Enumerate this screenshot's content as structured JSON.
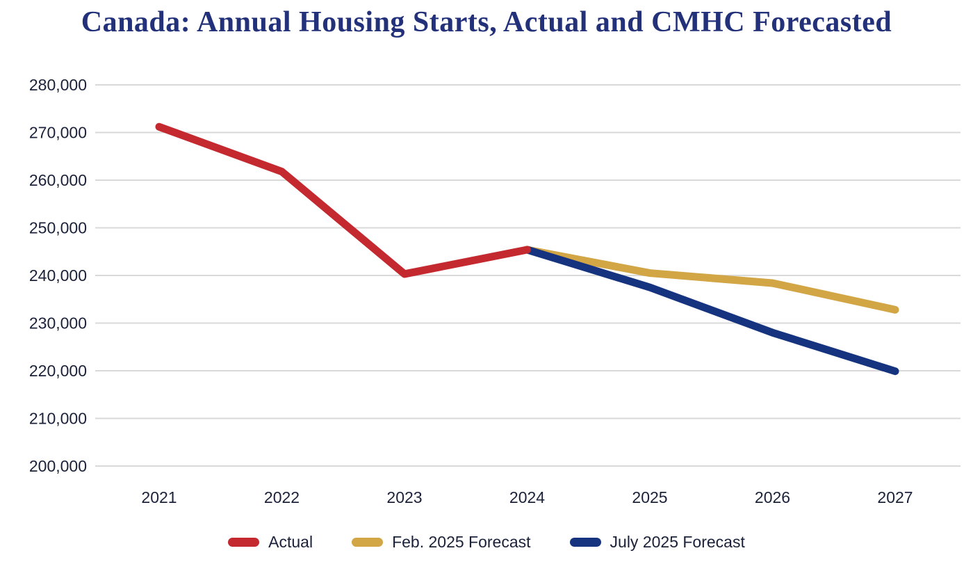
{
  "chart_data": {
    "type": "line",
    "title": "Canada: Annual Housing Starts, Actual and CMHC Forecasted",
    "x": [
      2021,
      2022,
      2023,
      2024,
      2025,
      2026,
      2027
    ],
    "xlabel": "",
    "ylabel": "",
    "ylim": [
      200000,
      280000
    ],
    "ytick_step": 10000,
    "ytick_labels": [
      "200,000",
      "210,000",
      "220,000",
      "230,000",
      "240,000",
      "250,000",
      "260,000",
      "270,000",
      "280,000"
    ],
    "grid": true,
    "legend_position": "bottom",
    "series": [
      {
        "name": "Actual",
        "color": "#c3292f",
        "x": [
          2021,
          2022,
          2023,
          2024
        ],
        "values": [
          271200,
          261800,
          240300,
          245400
        ]
      },
      {
        "name": "Feb. 2025 Forecast",
        "color": "#d2a545",
        "x": [
          2024,
          2025,
          2026,
          2027
        ],
        "values": [
          245400,
          240500,
          238400,
          232800
        ]
      },
      {
        "name": "July 2025 Forecast",
        "color": "#15337e",
        "x": [
          2024,
          2025,
          2026,
          2027
        ],
        "values": [
          245400,
          237500,
          228000,
          219900
        ]
      }
    ],
    "colors": {
      "title": "#223179",
      "axis_text": "#1b2139",
      "gridline": "#d9d9d9",
      "background": "#ffffff"
    }
  }
}
